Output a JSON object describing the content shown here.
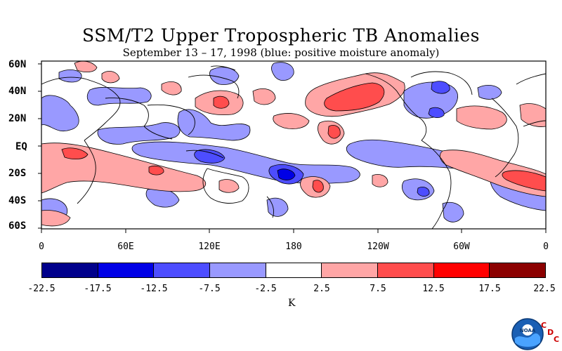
{
  "title": "SSM/T2 Upper Tropospheric TB Anomalies",
  "subtitle": "September 13 – 17, 1998 (blue: positive moisture anomaly)",
  "latitude_labels": [
    "60N",
    "40N",
    "20N",
    "EQ",
    "20S",
    "40S",
    "60S"
  ],
  "longitude_labels": [
    "0",
    "60E",
    "120E",
    "180",
    "120W",
    "60W",
    "0"
  ],
  "colorbar": {
    "labels": [
      "-22.5",
      "-17.5",
      "-12.5",
      "-7.5",
      "-2.5",
      "2.5",
      "7.5",
      "12.5",
      "17.5",
      "22.5"
    ],
    "colors": [
      "#00008b",
      "#0000e6",
      "#4d4dff",
      "#9999ff",
      "#ffffff",
      "#ffa6a6",
      "#ff4d4d",
      "#ff0000",
      "#8b0000"
    ],
    "unit": "K"
  },
  "logo": {
    "text": "NOAA",
    "letters": [
      "C",
      "D",
      "C"
    ]
  }
}
